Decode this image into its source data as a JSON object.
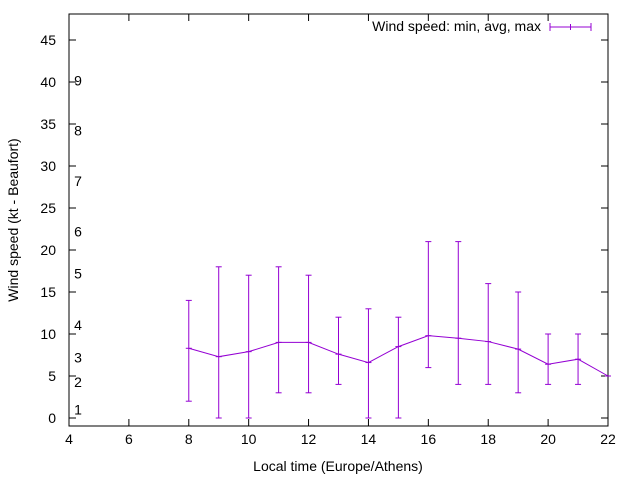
{
  "chart_data": {
    "type": "line",
    "title": "",
    "xlabel": "Local time (Europe/Athens)",
    "ylabel": "Wind speed (kt - Beaufort)",
    "xlim": [
      4,
      22
    ],
    "ylim": [
      0,
      48
    ],
    "x_ticks": [
      4,
      6,
      8,
      10,
      12,
      14,
      16,
      18,
      20,
      22
    ],
    "y_ticks": [
      0,
      5,
      10,
      15,
      20,
      25,
      30,
      35,
      40,
      45
    ],
    "beaufort_labels": [
      {
        "label": "1",
        "y": 1
      },
      {
        "label": "2",
        "y": 4.3
      },
      {
        "label": "3",
        "y": 7.2
      },
      {
        "label": "4",
        "y": 11.1
      },
      {
        "label": "5",
        "y": 17.2
      },
      {
        "label": "6",
        "y": 22.2
      },
      {
        "label": "7",
        "y": 28.2
      },
      {
        "label": "8",
        "y": 34.2
      },
      {
        "label": "9",
        "y": 40.2
      }
    ],
    "legend": {
      "label": "Wind speed: min, avg, max",
      "position": "top-right"
    },
    "series": [
      {
        "name": "Wind speed: min, avg, max",
        "color": "#9400d3",
        "x": [
          8,
          9,
          10,
          11,
          12,
          13,
          14,
          15,
          16,
          17,
          18,
          19,
          20,
          21,
          22
        ],
        "avg": [
          8.3,
          7.3,
          7.9,
          9,
          9,
          7.6,
          6.6,
          8.5,
          9.8,
          9.5,
          9.1,
          8.2,
          6.4,
          7,
          5
        ],
        "min": [
          2,
          0,
          0,
          3,
          3,
          4,
          0,
          0,
          6,
          4,
          4,
          3,
          4,
          4,
          5
        ],
        "max": [
          14,
          18,
          17,
          18,
          17,
          12,
          13,
          12,
          21,
          21,
          16,
          15,
          10,
          10,
          5
        ]
      }
    ]
  }
}
